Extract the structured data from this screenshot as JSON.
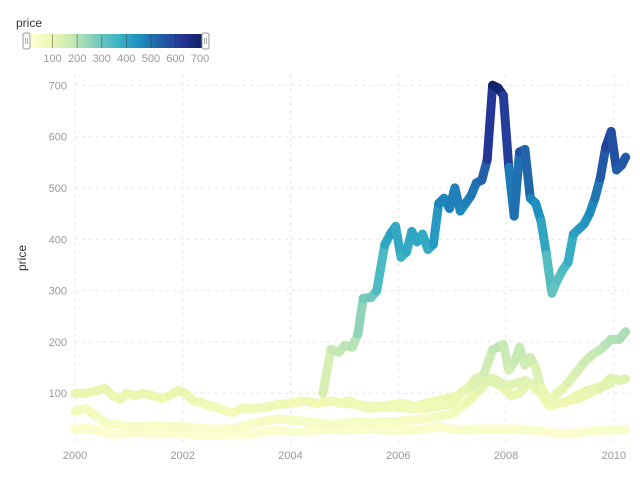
{
  "chart_data": {
    "type": "line",
    "title": "",
    "xlabel": "",
    "ylabel": "price",
    "x_ticks": [
      "2000",
      "2002",
      "2004",
      "2006",
      "2008",
      "2010"
    ],
    "y_ticks": [
      100,
      200,
      300,
      400,
      500,
      600,
      700
    ],
    "xlim": [
      2000,
      2010.3
    ],
    "ylim": [
      5,
      720
    ],
    "grid": true,
    "color_encoding": {
      "field": "price",
      "legend_title": "price",
      "legend_placement": "top-left",
      "domain": [
        0,
        720
      ],
      "legend_ticks": [
        100,
        200,
        300,
        400,
        500,
        600,
        700
      ],
      "scheme": [
        "#ffffd9",
        "#edf8b1",
        "#c7e9b4",
        "#7fcdbb",
        "#41b6c4",
        "#1d91c0",
        "#225ea8",
        "#253494",
        "#081d58"
      ]
    },
    "series": [
      {
        "points": [
          [
            2004.6,
            100
          ],
          [
            2004.75,
            185
          ],
          [
            2004.9,
            180
          ],
          [
            2005.0,
            193
          ],
          [
            2005.15,
            190
          ],
          [
            2005.25,
            215
          ],
          [
            2005.35,
            285
          ],
          [
            2005.5,
            287
          ],
          [
            2005.6,
            300
          ],
          [
            2005.75,
            390
          ],
          [
            2005.85,
            410
          ],
          [
            2005.95,
            425
          ],
          [
            2006.05,
            365
          ],
          [
            2006.15,
            375
          ],
          [
            2006.25,
            415
          ],
          [
            2006.35,
            395
          ],
          [
            2006.45,
            410
          ],
          [
            2006.55,
            380
          ],
          [
            2006.65,
            390
          ],
          [
            2006.75,
            470
          ],
          [
            2006.85,
            480
          ],
          [
            2006.95,
            460
          ],
          [
            2007.05,
            500
          ],
          [
            2007.15,
            455
          ],
          [
            2007.25,
            470
          ],
          [
            2007.35,
            485
          ],
          [
            2007.45,
            510
          ],
          [
            2007.55,
            515
          ],
          [
            2007.65,
            555
          ],
          [
            2007.75,
            700
          ],
          [
            2007.85,
            695
          ],
          [
            2007.95,
            680
          ],
          [
            2008.05,
            540
          ],
          [
            2008.15,
            445
          ],
          [
            2008.25,
            570
          ],
          [
            2008.35,
            575
          ],
          [
            2008.45,
            480
          ],
          [
            2008.55,
            470
          ],
          [
            2008.65,
            435
          ],
          [
            2008.75,
            370
          ],
          [
            2008.85,
            295
          ],
          [
            2008.95,
            320
          ],
          [
            2009.05,
            340
          ],
          [
            2009.15,
            355
          ],
          [
            2009.25,
            410
          ],
          [
            2009.35,
            420
          ],
          [
            2009.45,
            430
          ],
          [
            2009.55,
            450
          ],
          [
            2009.65,
            480
          ],
          [
            2009.75,
            520
          ],
          [
            2009.85,
            580
          ],
          [
            2009.95,
            610
          ],
          [
            2010.05,
            535
          ],
          [
            2010.15,
            545
          ],
          [
            2010.22,
            560
          ]
        ]
      },
      {
        "points": [
          [
            2000.0,
            100
          ],
          [
            2000.2,
            100
          ],
          [
            2000.4,
            105
          ],
          [
            2000.55,
            110
          ],
          [
            2000.7,
            95
          ],
          [
            2000.85,
            88
          ],
          [
            2000.95,
            100
          ],
          [
            2001.1,
            95
          ],
          [
            2001.25,
            100
          ],
          [
            2001.45,
            95
          ],
          [
            2001.6,
            90
          ],
          [
            2001.75,
            95
          ],
          [
            2001.9,
            105
          ],
          [
            2002.05,
            100
          ],
          [
            2002.2,
            85
          ],
          [
            2002.35,
            82
          ],
          [
            2002.5,
            75
          ],
          [
            2002.65,
            72
          ],
          [
            2002.8,
            65
          ],
          [
            2002.95,
            62
          ],
          [
            2003.1,
            72
          ],
          [
            2003.25,
            70
          ],
          [
            2003.5,
            72
          ],
          [
            2003.75,
            78
          ],
          [
            2004.0,
            80
          ],
          [
            2004.25,
            85
          ],
          [
            2004.5,
            80
          ],
          [
            2004.75,
            85
          ],
          [
            2005.0,
            80
          ],
          [
            2005.25,
            78
          ],
          [
            2005.5,
            75
          ],
          [
            2005.75,
            73
          ],
          [
            2006.0,
            72
          ],
          [
            2006.25,
            70
          ],
          [
            2006.5,
            70
          ],
          [
            2006.75,
            75
          ],
          [
            2007.0,
            80
          ],
          [
            2007.2,
            105
          ],
          [
            2007.4,
            115
          ],
          [
            2007.6,
            140
          ],
          [
            2007.75,
            185
          ],
          [
            2007.85,
            190
          ],
          [
            2007.95,
            195
          ],
          [
            2008.05,
            145
          ],
          [
            2008.15,
            160
          ],
          [
            2008.25,
            190
          ],
          [
            2008.35,
            155
          ],
          [
            2008.45,
            170
          ],
          [
            2008.55,
            150
          ],
          [
            2008.65,
            110
          ],
          [
            2008.8,
            85
          ],
          [
            2008.95,
            100
          ],
          [
            2009.15,
            120
          ],
          [
            2009.3,
            140
          ],
          [
            2009.45,
            160
          ],
          [
            2009.6,
            175
          ],
          [
            2009.75,
            185
          ],
          [
            2009.85,
            195
          ],
          [
            2009.95,
            205
          ],
          [
            2010.1,
            205
          ],
          [
            2010.22,
            220
          ]
        ]
      },
      {
        "points": [
          [
            2000.0,
            65
          ],
          [
            2000.2,
            70
          ],
          [
            2000.4,
            55
          ],
          [
            2000.6,
            40
          ],
          [
            2000.8,
            40
          ],
          [
            2001.0,
            35
          ],
          [
            2001.25,
            35
          ],
          [
            2001.5,
            38
          ],
          [
            2001.75,
            35
          ],
          [
            2002.0,
            35
          ],
          [
            2002.25,
            32
          ],
          [
            2002.5,
            30
          ],
          [
            2002.75,
            30
          ],
          [
            2003.0,
            32
          ],
          [
            2003.25,
            40
          ],
          [
            2003.5,
            45
          ],
          [
            2003.75,
            50
          ],
          [
            2004.0,
            48
          ],
          [
            2004.25,
            45
          ],
          [
            2004.5,
            42
          ],
          [
            2004.75,
            40
          ],
          [
            2005.0,
            42
          ],
          [
            2005.25,
            45
          ],
          [
            2005.5,
            42
          ],
          [
            2005.75,
            45
          ],
          [
            2006.0,
            45
          ],
          [
            2006.25,
            48
          ],
          [
            2006.5,
            50
          ],
          [
            2006.75,
            55
          ],
          [
            2007.0,
            60
          ],
          [
            2007.25,
            80
          ],
          [
            2007.5,
            105
          ],
          [
            2007.65,
            125
          ],
          [
            2007.8,
            120
          ],
          [
            2007.95,
            110
          ],
          [
            2008.1,
            95
          ],
          [
            2008.25,
            100
          ],
          [
            2008.4,
            120
          ],
          [
            2008.5,
            118
          ],
          [
            2008.6,
            110
          ],
          [
            2008.75,
            95
          ],
          [
            2008.9,
            80
          ],
          [
            2009.1,
            82
          ],
          [
            2009.3,
            95
          ],
          [
            2009.5,
            105
          ],
          [
            2009.65,
            110
          ],
          [
            2009.8,
            115
          ],
          [
            2009.95,
            130
          ],
          [
            2010.1,
            125
          ],
          [
            2010.22,
            128
          ]
        ]
      },
      {
        "points": [
          [
            2000.0,
            30
          ],
          [
            2000.25,
            32
          ],
          [
            2000.5,
            25
          ],
          [
            2000.75,
            20
          ],
          [
            2001.0,
            22
          ],
          [
            2001.25,
            25
          ],
          [
            2001.5,
            20
          ],
          [
            2001.75,
            22
          ],
          [
            2002.0,
            22
          ],
          [
            2002.25,
            18
          ],
          [
            2002.5,
            18
          ],
          [
            2002.75,
            18
          ],
          [
            2003.0,
            20
          ],
          [
            2003.25,
            20
          ],
          [
            2003.5,
            25
          ],
          [
            2003.75,
            28
          ],
          [
            2004.0,
            25
          ],
          [
            2004.25,
            25
          ],
          [
            2004.5,
            28
          ],
          [
            2004.75,
            30
          ],
          [
            2005.0,
            28
          ],
          [
            2005.25,
            30
          ],
          [
            2005.5,
            30
          ],
          [
            2005.75,
            28
          ],
          [
            2006.0,
            28
          ],
          [
            2006.25,
            28
          ],
          [
            2006.5,
            30
          ],
          [
            2006.75,
            35
          ],
          [
            2007.0,
            30
          ],
          [
            2007.25,
            28
          ],
          [
            2007.5,
            30
          ],
          [
            2007.75,
            30
          ],
          [
            2008.0,
            30
          ],
          [
            2008.25,
            30
          ],
          [
            2008.5,
            28
          ],
          [
            2008.75,
            25
          ],
          [
            2009.0,
            20
          ],
          [
            2009.25,
            22
          ],
          [
            2009.5,
            25
          ],
          [
            2009.75,
            28
          ],
          [
            2010.0,
            28
          ],
          [
            2010.22,
            30
          ]
        ]
      },
      {
        "points": [
          [
            2004.9,
            80
          ],
          [
            2005.1,
            85
          ],
          [
            2005.3,
            75
          ],
          [
            2005.5,
            70
          ],
          [
            2005.7,
            75
          ],
          [
            2005.9,
            78
          ],
          [
            2006.1,
            80
          ],
          [
            2006.3,
            75
          ],
          [
            2006.5,
            80
          ],
          [
            2006.7,
            85
          ],
          [
            2006.9,
            90
          ],
          [
            2007.1,
            95
          ],
          [
            2007.3,
            110
          ],
          [
            2007.45,
            130
          ],
          [
            2007.6,
            125
          ],
          [
            2007.75,
            130
          ],
          [
            2007.9,
            120
          ],
          [
            2008.05,
            115
          ],
          [
            2008.2,
            120
          ],
          [
            2008.35,
            125
          ],
          [
            2008.5,
            115
          ],
          [
            2008.65,
            100
          ],
          [
            2008.8,
            75
          ],
          [
            2008.95,
            80
          ],
          [
            2009.15,
            85
          ],
          [
            2009.35,
            90
          ],
          [
            2009.55,
            100
          ],
          [
            2009.75,
            110
          ],
          [
            2009.95,
            120
          ]
        ]
      }
    ]
  }
}
